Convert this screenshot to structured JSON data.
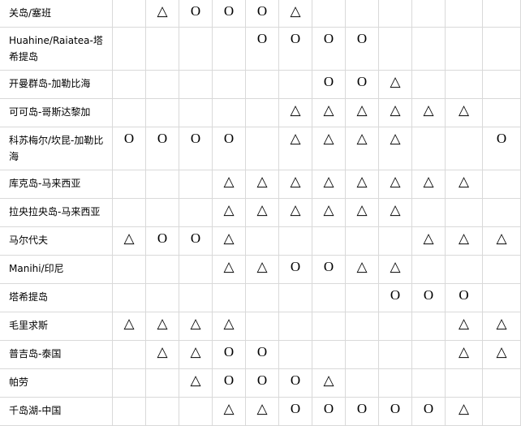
{
  "rows": [
    {
      "name": "关岛/塞班",
      "marks": [
        "",
        "△",
        "O",
        "O",
        "O",
        "△",
        "",
        "",
        "",
        "",
        "",
        ""
      ]
    },
    {
      "name": "Huahine/Raiatea-塔希提岛",
      "marks": [
        "",
        "",
        "",
        "",
        "O",
        "O",
        "O",
        "O",
        "",
        "",
        "",
        ""
      ]
    },
    {
      "name": "开曼群岛-加勒比海",
      "marks": [
        "",
        "",
        "",
        "",
        "",
        "",
        "O",
        "O",
        "△",
        "",
        "",
        ""
      ]
    },
    {
      "name": "可可岛-哥斯达黎加",
      "marks": [
        "",
        "",
        "",
        "",
        "",
        "△",
        "△",
        "△",
        "△",
        "△",
        "△",
        ""
      ]
    },
    {
      "name": "科苏梅尔/坎昆-加勒比海",
      "marks": [
        "O",
        "O",
        "O",
        "O",
        "",
        "△",
        "△",
        "△",
        "△",
        "",
        "",
        "O"
      ]
    },
    {
      "name": "库克岛-马来西亚",
      "marks": [
        "",
        "",
        "",
        "△",
        "△",
        "△",
        "△",
        "△",
        "△",
        "△",
        "△",
        ""
      ]
    },
    {
      "name": "拉央拉央岛-马来西亚",
      "marks": [
        "",
        "",
        "",
        "△",
        "△",
        "△",
        "△",
        "△",
        "△",
        "",
        "",
        ""
      ]
    },
    {
      "name": "马尔代夫",
      "marks": [
        "△",
        "O",
        "O",
        "△",
        "",
        "",
        "",
        "",
        "",
        "△",
        "△",
        "△"
      ]
    },
    {
      "name": "Manihi/印尼",
      "marks": [
        "",
        "",
        "",
        "△",
        "△",
        "O",
        "O",
        "△",
        "△",
        "",
        "",
        ""
      ]
    },
    {
      "name": "塔希提岛",
      "marks": [
        "",
        "",
        "",
        "",
        "",
        "",
        "",
        "",
        "O",
        "O",
        "O",
        ""
      ]
    },
    {
      "name": "毛里求斯",
      "marks": [
        "△",
        "△",
        "△",
        "△",
        "",
        "",
        "",
        "",
        "",
        "",
        "△",
        "△"
      ]
    },
    {
      "name": "普吉岛-泰国",
      "marks": [
        "",
        "△",
        "△",
        "O",
        "O",
        "",
        "",
        "",
        "",
        "",
        "△",
        "△"
      ]
    },
    {
      "name": "帕劳",
      "marks": [
        "",
        "",
        "△",
        "O",
        "O",
        "O",
        "△",
        "",
        "",
        "",
        "",
        ""
      ]
    },
    {
      "name": "千岛湖-中国",
      "marks": [
        "",
        "",
        "",
        "△",
        "△",
        "O",
        "O",
        "O",
        "O",
        "O",
        "△",
        ""
      ]
    }
  ]
}
